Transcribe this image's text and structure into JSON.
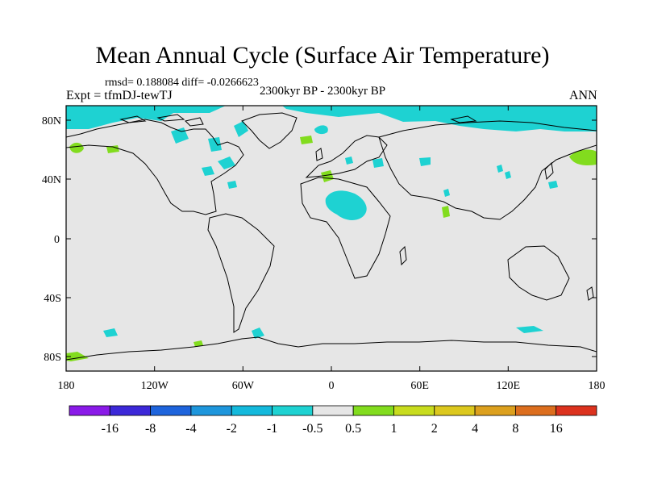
{
  "title": "Mean Annual Cycle (Surface Air Temperature)",
  "stats": "rmsd= 0.188084 diff= -0.0266623",
  "subtitle": "2300kyr BP - 2300kyr BP",
  "expt": "Expt = tfmDJ-tewTJ",
  "season": "ANN",
  "y_ticks": [
    "80N",
    "40N",
    "0",
    "40S",
    "80S"
  ],
  "x_ticks": [
    "180",
    "120W",
    "60W",
    "0",
    "60E",
    "120E",
    "180"
  ],
  "colorbar": {
    "labels": [
      "-16",
      "-8",
      "-4",
      "-2",
      "-1",
      "-0.5",
      "0.5",
      "1",
      "2",
      "4",
      "8",
      "16"
    ],
    "colors": [
      "#8a1ae8",
      "#3c28d8",
      "#1e64dc",
      "#1e96dc",
      "#14b9dc",
      "#1ed2d2",
      "#e6e6e6",
      "#82dc1e",
      "#c8dc1e",
      "#dcc81e",
      "#dca01e",
      "#dc6e1e",
      "#dc321e"
    ]
  },
  "colors": {
    "map_bg": "#e6e6e6",
    "cyan": "#1ed2d2",
    "green": "#82dc1e",
    "coast": "#000000"
  }
}
